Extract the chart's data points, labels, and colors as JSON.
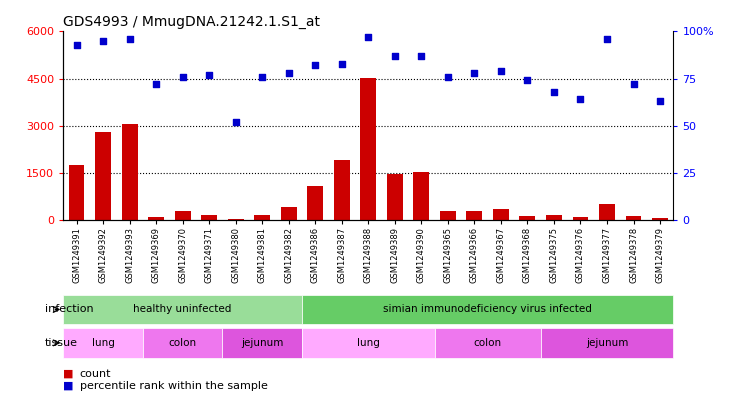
{
  "title": "GDS4993 / MmugDNA.21242.1.S1_at",
  "samples": [
    "GSM1249391",
    "GSM1249392",
    "GSM1249393",
    "GSM1249369",
    "GSM1249370",
    "GSM1249371",
    "GSM1249380",
    "GSM1249381",
    "GSM1249382",
    "GSM1249386",
    "GSM1249387",
    "GSM1249388",
    "GSM1249389",
    "GSM1249390",
    "GSM1249365",
    "GSM1249366",
    "GSM1249367",
    "GSM1249368",
    "GSM1249375",
    "GSM1249376",
    "GSM1249377",
    "GSM1249378",
    "GSM1249379"
  ],
  "counts": [
    1750,
    2800,
    3050,
    100,
    280,
    160,
    30,
    170,
    420,
    1080,
    1900,
    4530,
    1480,
    1540,
    280,
    290,
    360,
    130,
    170,
    110,
    520,
    120,
    80
  ],
  "percentiles": [
    5580,
    5700,
    5760,
    4320,
    4560,
    4620,
    3120,
    4560,
    4680,
    4920,
    4980,
    5820,
    5220,
    5220,
    4560,
    4680,
    4740,
    4440,
    4080,
    3840,
    5760,
    4320,
    3780
  ],
  "ylim": [
    0,
    6000
  ],
  "yticks_left": [
    0,
    1500,
    3000,
    4500,
    6000
  ],
  "yticks_right_vals": [
    0,
    1500,
    3000,
    4500,
    6000
  ],
  "yticks_right_labels": [
    "0",
    "25",
    "50",
    "75",
    "100%"
  ],
  "bar_color": "#cc0000",
  "dot_color": "#0000cc",
  "bg_color": "#ffffff",
  "infection_groups": [
    {
      "label": "healthy uninfected",
      "start": 0,
      "end": 9,
      "color": "#99dd99"
    },
    {
      "label": "simian immunodeficiency virus infected",
      "start": 9,
      "end": 23,
      "color": "#66cc66"
    }
  ],
  "tissue_groups": [
    {
      "label": "lung",
      "start": 0,
      "end": 3,
      "color": "#ffaaff"
    },
    {
      "label": "colon",
      "start": 3,
      "end": 6,
      "color": "#ee77ee"
    },
    {
      "label": "jejunum",
      "start": 6,
      "end": 9,
      "color": "#dd55dd"
    },
    {
      "label": "lung",
      "start": 9,
      "end": 14,
      "color": "#ffaaff"
    },
    {
      "label": "colon",
      "start": 14,
      "end": 18,
      "color": "#ee77ee"
    },
    {
      "label": "jejunum",
      "start": 18,
      "end": 23,
      "color": "#dd55dd"
    }
  ],
  "infection_label": "infection",
  "tissue_label": "tissue",
  "legend_count": "count",
  "legend_percentile": "percentile rank within the sample"
}
